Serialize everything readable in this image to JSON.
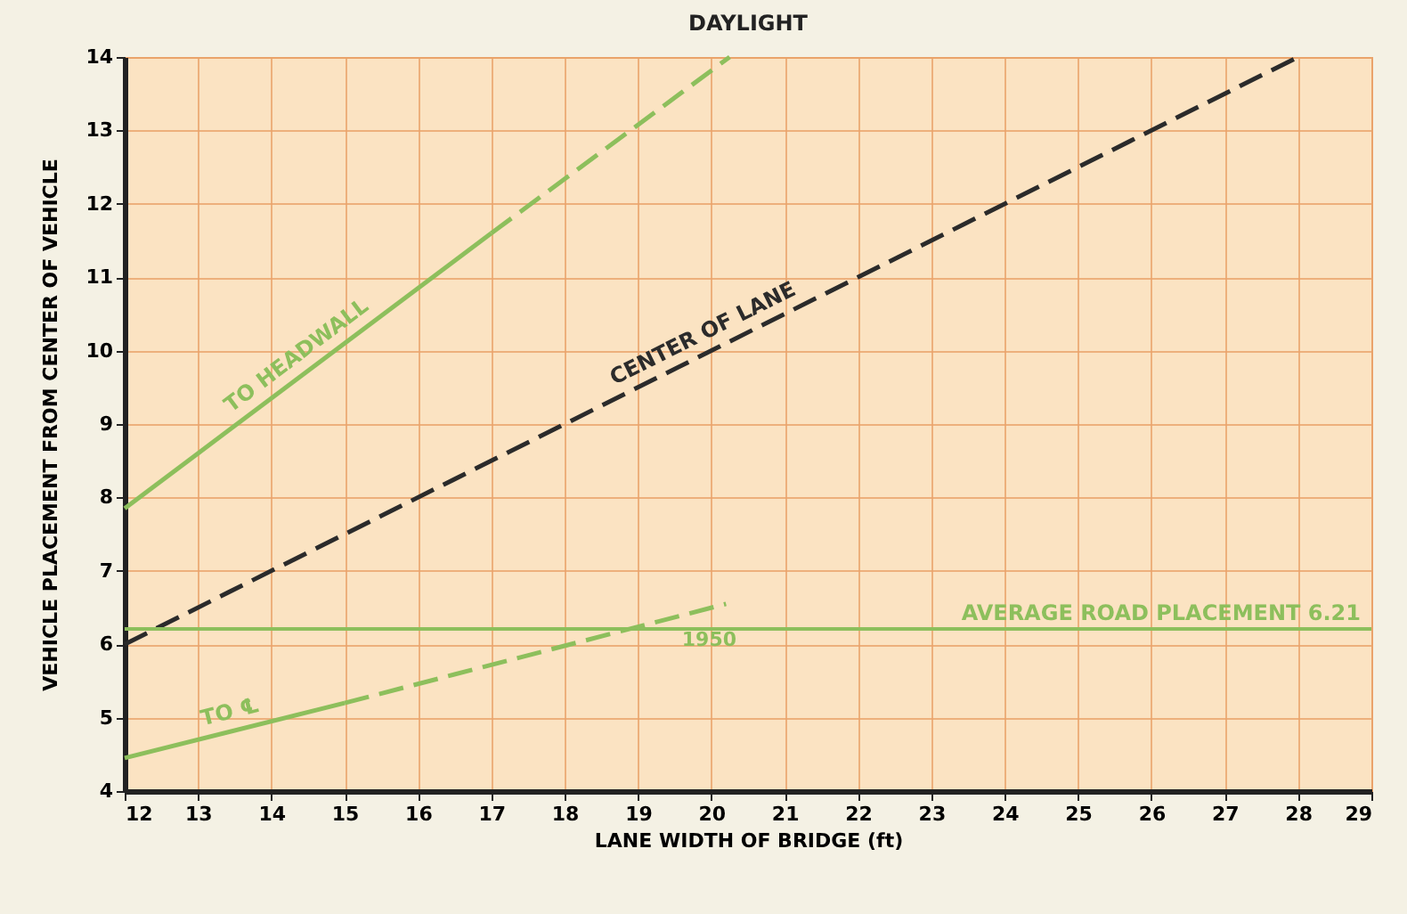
{
  "chart_data": {
    "type": "line",
    "title": "DAYLIGHT",
    "xlabel": "LANE WIDTH OF BRIDGE (ft)",
    "ylabel": "VEHICLE PLACEMENT FROM CENTER OF VEHICLE",
    "xlim": [
      12,
      29
    ],
    "xticks": [
      12,
      13,
      14,
      15,
      16,
      17,
      18,
      19,
      20,
      21,
      22,
      23,
      24,
      25,
      26,
      27,
      28,
      29
    ],
    "ylim": [
      4,
      14
    ],
    "yticks": [
      4,
      5,
      6,
      7,
      8,
      9,
      10,
      11,
      12,
      13,
      14
    ],
    "grid": true,
    "series": [
      {
        "name": "TO HEADWALL",
        "color": "#8dbf5c",
        "x": [
          12,
          17
        ],
        "values": [
          7.85,
          11.6
        ],
        "line_style": "solid"
      },
      {
        "color": "#8dbf5c",
        "x": [
          17,
          20.25
        ],
        "values": [
          11.6,
          14
        ],
        "line_style": "dashed"
      },
      {
        "name": "CENTER OF LANE",
        "color": "#2b2b2b",
        "x": [
          12,
          28
        ],
        "values": [
          6,
          14
        ],
        "line_style": "dashed"
      },
      {
        "name": "TO ℄",
        "color": "#8dbf5c",
        "x": [
          12,
          15
        ],
        "values": [
          4.45,
          5.2
        ],
        "line_style": "solid"
      },
      {
        "color": "#8dbf5c",
        "x": [
          15,
          20.2
        ],
        "values": [
          5.2,
          6.55
        ],
        "line_style": "dashed"
      }
    ],
    "ref_lines": [
      {
        "axis": "y",
        "value": 6.21,
        "label": "AVERAGE ROAD PLACEMENT 6.21",
        "color": "#8dbf5c"
      }
    ],
    "annotations": [
      "1950"
    ]
  }
}
